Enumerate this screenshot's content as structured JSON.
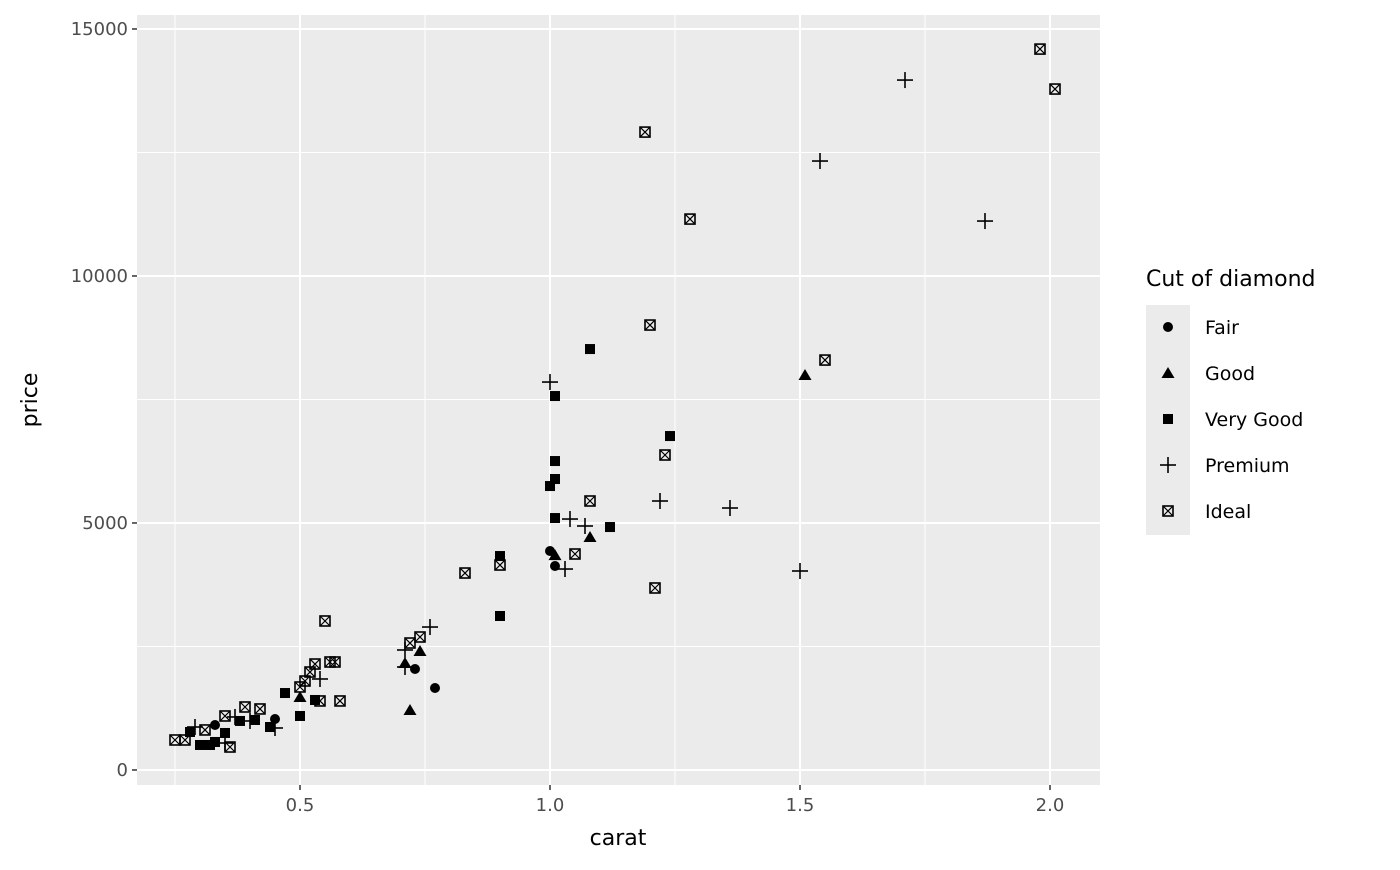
{
  "chart_data": {
    "type": "scatter",
    "title": "",
    "xlabel": "carat",
    "ylabel": "price",
    "xlim": [
      0.174,
      2.1
    ],
    "ylim": [
      -304,
      15283
    ],
    "xticks": [
      0.5,
      1.0,
      1.5,
      2.0
    ],
    "xtick_labels": [
      "0.5",
      "1.0",
      "1.5",
      "2.0"
    ],
    "yticks": [
      0,
      5000,
      10000,
      15000
    ],
    "ytick_labels": [
      "0",
      "5000",
      "10000",
      "15000"
    ],
    "grid": true,
    "legend": {
      "title": "Cut of diamond",
      "placement": "right"
    },
    "series": [
      {
        "name": "Fair",
        "shape": "circle",
        "points": [
          [
            1.0,
            4433
          ],
          [
            1.01,
            4129
          ],
          [
            0.73,
            2044
          ],
          [
            0.77,
            1660
          ],
          [
            0.45,
            1032
          ],
          [
            0.33,
            911
          ]
        ]
      },
      {
        "name": "Good",
        "shape": "triangle",
        "points": [
          [
            1.01,
            4350
          ],
          [
            1.08,
            4716
          ],
          [
            1.51,
            7995
          ],
          [
            0.74,
            2409
          ],
          [
            0.71,
            2166
          ],
          [
            0.72,
            1214
          ],
          [
            0.5,
            1478
          ]
        ]
      },
      {
        "name": "Very Good",
        "shape": "square",
        "points": [
          [
            1.08,
            8521
          ],
          [
            1.01,
            7570
          ],
          [
            1.01,
            6254
          ],
          [
            1.01,
            5890
          ],
          [
            1.0,
            5748
          ],
          [
            1.01,
            5100
          ],
          [
            1.12,
            4918
          ],
          [
            1.24,
            6760
          ],
          [
            0.9,
            4331
          ],
          [
            0.9,
            3117
          ],
          [
            0.47,
            1558
          ],
          [
            0.5,
            1093
          ],
          [
            0.53,
            1417
          ],
          [
            0.44,
            870
          ],
          [
            0.38,
            992
          ],
          [
            0.41,
            1012
          ],
          [
            0.3,
            506
          ],
          [
            0.28,
            769
          ],
          [
            0.33,
            567
          ],
          [
            0.35,
            749
          ],
          [
            0.32,
            506
          ]
        ]
      },
      {
        "name": "Premium",
        "shape": "plus",
        "points": [
          [
            1.71,
            13966
          ],
          [
            1.54,
            12327
          ],
          [
            1.87,
            11112
          ],
          [
            1.0,
            7853
          ],
          [
            1.22,
            5445
          ],
          [
            1.36,
            5303
          ],
          [
            1.04,
            5080
          ],
          [
            1.07,
            4939
          ],
          [
            1.03,
            4068
          ],
          [
            1.5,
            4028
          ],
          [
            0.76,
            2894
          ],
          [
            0.71,
            2429
          ],
          [
            0.71,
            2085
          ],
          [
            0.54,
            1842
          ],
          [
            0.45,
            850
          ],
          [
            0.29,
            870
          ],
          [
            0.37,
            1073
          ],
          [
            0.35,
            546
          ],
          [
            0.4,
            992
          ]
        ]
      },
      {
        "name": "Ideal",
        "shape": "square-cross",
        "points": [
          [
            1.98,
            14593
          ],
          [
            2.01,
            13784
          ],
          [
            1.19,
            12913
          ],
          [
            1.28,
            11152
          ],
          [
            1.2,
            9007
          ],
          [
            1.55,
            8298
          ],
          [
            1.23,
            6376
          ],
          [
            1.08,
            5445
          ],
          [
            1.05,
            4372
          ],
          [
            1.21,
            3684
          ],
          [
            0.83,
            3987
          ],
          [
            0.9,
            4149
          ],
          [
            0.55,
            3016
          ],
          [
            0.74,
            2692
          ],
          [
            0.72,
            2570
          ],
          [
            0.56,
            2186
          ],
          [
            0.57,
            2186
          ],
          [
            0.53,
            2145
          ],
          [
            0.52,
            1983
          ],
          [
            0.51,
            1801
          ],
          [
            0.5,
            1680
          ],
          [
            0.54,
            1397
          ],
          [
            0.58,
            1397
          ],
          [
            0.42,
            1235
          ],
          [
            0.39,
            1275
          ],
          [
            0.35,
            1093
          ],
          [
            0.25,
            607
          ],
          [
            0.27,
            607
          ],
          [
            0.36,
            465
          ],
          [
            0.31,
            810
          ]
        ]
      }
    ]
  },
  "colors": {
    "panel": "#EBEBEB",
    "grid": "#FFFFFF",
    "points": "#000000",
    "text": "#4D4D4D"
  }
}
